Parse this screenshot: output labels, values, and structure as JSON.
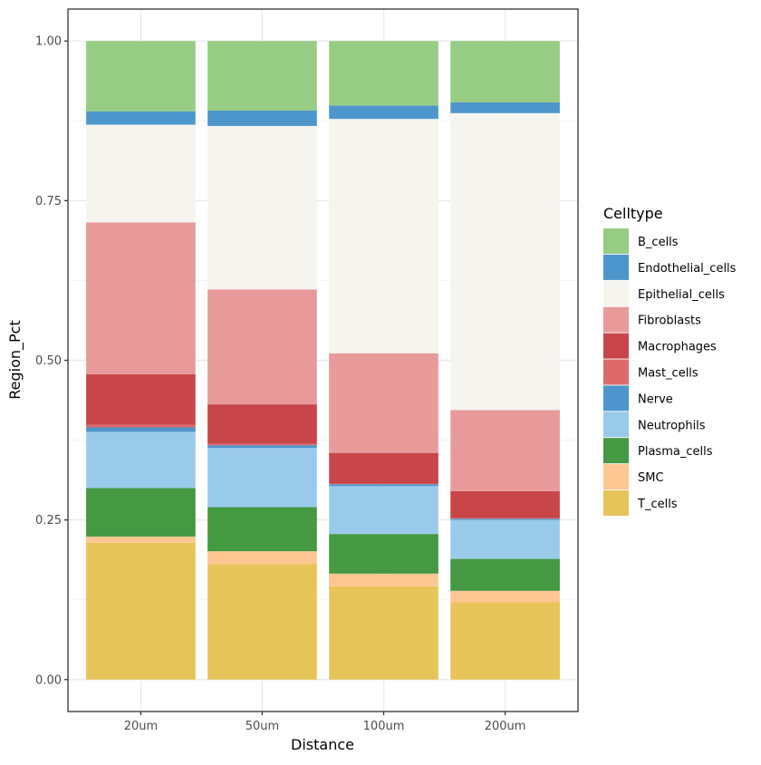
{
  "chart_data": {
    "type": "bar",
    "stacked": true,
    "title": "",
    "xlabel": "Distance",
    "ylabel": "Region_Pct",
    "ylim": [
      -0.05,
      1.05
    ],
    "yticks": [
      0.0,
      0.25,
      0.5,
      0.75,
      1.0
    ],
    "ytick_labels": [
      "0.00",
      "0.25",
      "0.50",
      "0.75",
      "1.00"
    ],
    "grid": true,
    "categories": [
      "20um",
      "50um",
      "100um",
      "200um"
    ],
    "legend": {
      "title": "Celltype",
      "position": "right"
    },
    "series": [
      {
        "name": "B_cells",
        "color": "#97CC85",
        "values": [
          0.11,
          0.109,
          0.101,
          0.096
        ]
      },
      {
        "name": "Endothelial_cells",
        "color": "#4D96CC",
        "values": [
          0.021,
          0.024,
          0.021,
          0.017
        ]
      },
      {
        "name": "Epithelial_cells",
        "color": "#F5F4EE",
        "values": [
          0.153,
          0.256,
          0.367,
          0.465
        ]
      },
      {
        "name": "Fibroblasts",
        "color": "#E89A9B",
        "values": [
          0.238,
          0.18,
          0.156,
          0.127
        ]
      },
      {
        "name": "Macrophages",
        "color": "#C84649",
        "values": [
          0.079,
          0.062,
          0.048,
          0.042
        ]
      },
      {
        "name": "Mast_cells",
        "color": "#DD6A6A",
        "values": [
          0.004,
          0.002,
          0.001,
          0.001
        ]
      },
      {
        "name": "Nerve",
        "color": "#4D95CC",
        "values": [
          0.007,
          0.004,
          0.003,
          0.002
        ]
      },
      {
        "name": "Neutrophils",
        "color": "#99CAE9",
        "values": [
          0.088,
          0.093,
          0.075,
          0.061
        ]
      },
      {
        "name": "Plasma_cells",
        "color": "#449942",
        "values": [
          0.076,
          0.069,
          0.062,
          0.05
        ]
      },
      {
        "name": "SMC",
        "color": "#FDC692",
        "values": [
          0.01,
          0.02,
          0.02,
          0.018
        ]
      },
      {
        "name": "T_cells",
        "color": "#E6C45A",
        "values": [
          0.214,
          0.181,
          0.146,
          0.121
        ]
      }
    ]
  }
}
